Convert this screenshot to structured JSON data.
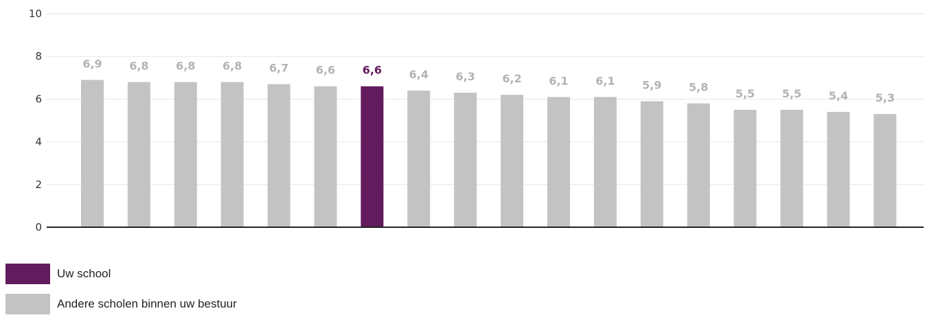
{
  "chart_data": {
    "type": "bar",
    "categories": [
      "",
      "",
      "",
      "",
      "",
      "",
      "",
      "",
      "",
      "",
      "",
      "",
      "",
      "",
      "",
      "",
      "",
      ""
    ],
    "values": [
      6.9,
      6.8,
      6.8,
      6.8,
      6.7,
      6.6,
      6.6,
      6.4,
      6.3,
      6.2,
      6.1,
      6.1,
      5.9,
      5.8,
      5.5,
      5.5,
      5.4,
      5.3
    ],
    "value_labels": [
      "6,9",
      "6,8",
      "6,8",
      "6,8",
      "6,7",
      "6,6",
      "6,6",
      "6,4",
      "6,3",
      "6,2",
      "6,1",
      "6,1",
      "5,9",
      "5,8",
      "5,5",
      "5,5",
      "5,4",
      "5,3"
    ],
    "highlight_index": 6,
    "ylim": [
      0,
      10
    ],
    "yticks": [
      0,
      2,
      4,
      6,
      8,
      10
    ],
    "ytick_labels": [
      "0",
      "2",
      "4",
      "6",
      "8",
      "10"
    ],
    "grid": true,
    "colors": {
      "highlight": "#621b5c",
      "other": "#c3c3c3",
      "grid": "#e6e6e6",
      "axis": "#222222"
    },
    "legend": [
      {
        "label": "Uw school",
        "color": "#621b5c"
      },
      {
        "label": "Andere scholen binnen uw bestuur",
        "color": "#c3c3c3"
      }
    ],
    "legend_position": "bottom-left"
  }
}
